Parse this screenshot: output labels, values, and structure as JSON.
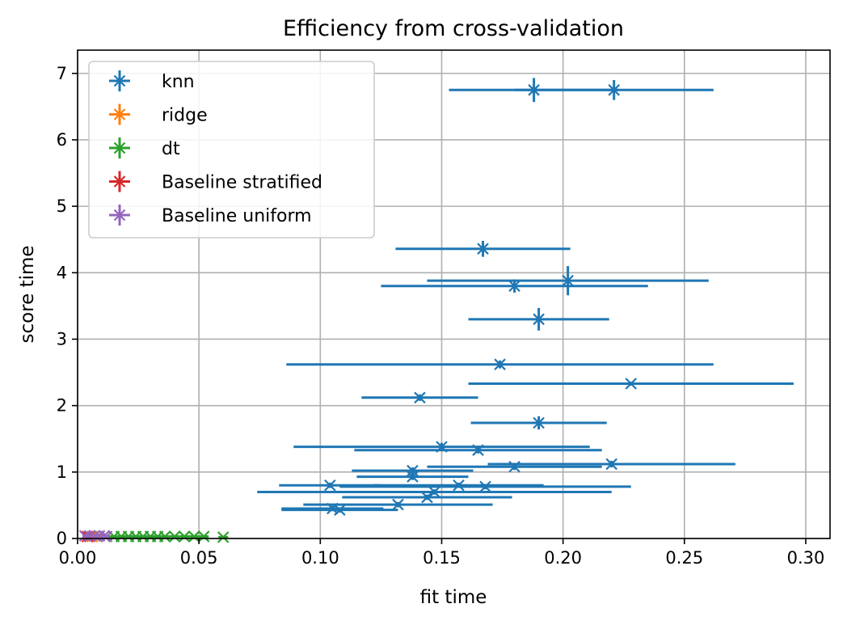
{
  "chart_data": {
    "type": "scatter",
    "title": "Efficiency from cross-validation",
    "xlabel": "fit time",
    "ylabel": "score time",
    "xlim": [
      0.0,
      0.31
    ],
    "ylim": [
      0,
      7.35
    ],
    "xticks": [
      0.0,
      0.05,
      0.1,
      0.15,
      0.2,
      0.25,
      0.3
    ],
    "xtick_labels": [
      "0.00",
      "0.05",
      "0.10",
      "0.15",
      "0.20",
      "0.25",
      "0.30"
    ],
    "yticks": [
      0,
      1,
      2,
      3,
      4,
      5,
      6,
      7
    ],
    "ytick_labels": [
      "0",
      "1",
      "2",
      "3",
      "4",
      "5",
      "6",
      "7"
    ],
    "grid": true,
    "legend_position": "top-left",
    "marker": "x",
    "series": [
      {
        "name": "knn",
        "color": "#1f77b4",
        "points": [
          {
            "x": 0.188,
            "y": 6.75,
            "xerr": 0.035,
            "yerr": 0.18
          },
          {
            "x": 0.221,
            "y": 6.75,
            "xerr": 0.041,
            "yerr": 0.15
          },
          {
            "x": 0.167,
            "y": 4.36,
            "xerr": 0.036,
            "yerr": 0.12
          },
          {
            "x": 0.202,
            "y": 3.88,
            "xerr": 0.058,
            "yerr": 0.22
          },
          {
            "x": 0.18,
            "y": 3.8,
            "xerr": 0.055,
            "yerr": 0.1
          },
          {
            "x": 0.19,
            "y": 3.3,
            "xerr": 0.029,
            "yerr": 0.17
          },
          {
            "x": 0.174,
            "y": 2.62,
            "xerr": 0.088,
            "yerr": 0.06
          },
          {
            "x": 0.228,
            "y": 2.33,
            "xerr": 0.067,
            "yerr": 0.03
          },
          {
            "x": 0.141,
            "y": 2.12,
            "xerr": 0.024,
            "yerr": 0.05
          },
          {
            "x": 0.19,
            "y": 1.74,
            "xerr": 0.028,
            "yerr": 0.1
          },
          {
            "x": 0.15,
            "y": 1.38,
            "xerr": 0.061,
            "yerr": 0.06
          },
          {
            "x": 0.165,
            "y": 1.33,
            "xerr": 0.051,
            "yerr": 0.05
          },
          {
            "x": 0.22,
            "y": 1.12,
            "xerr": 0.051,
            "yerr": 0.05
          },
          {
            "x": 0.18,
            "y": 1.08,
            "xerr": 0.036,
            "yerr": 0.05
          },
          {
            "x": 0.138,
            "y": 1.02,
            "xerr": 0.025,
            "yerr": 0.05
          },
          {
            "x": 0.138,
            "y": 0.93,
            "xerr": 0.023,
            "yerr": 0.05
          },
          {
            "x": 0.104,
            "y": 0.8,
            "xerr": 0.021,
            "yerr": 0.04
          },
          {
            "x": 0.157,
            "y": 0.8,
            "xerr": 0.035,
            "yerr": 0.04
          },
          {
            "x": 0.168,
            "y": 0.78,
            "xerr": 0.06,
            "yerr": 0.04
          },
          {
            "x": 0.147,
            "y": 0.7,
            "xerr": 0.073,
            "yerr": 0.04
          },
          {
            "x": 0.144,
            "y": 0.62,
            "xerr": 0.035,
            "yerr": 0.04
          },
          {
            "x": 0.132,
            "y": 0.51,
            "xerr": 0.039,
            "yerr": 0.04
          },
          {
            "x": 0.105,
            "y": 0.45,
            "xerr": 0.021,
            "yerr": 0.04
          },
          {
            "x": 0.108,
            "y": 0.43,
            "xerr": 0.024,
            "yerr": 0.04
          }
        ]
      },
      {
        "name": "ridge",
        "color": "#ff7f0e",
        "points": [
          {
            "x": 0.006,
            "y": 0.03,
            "xerr": 0.002,
            "yerr": 0.01
          },
          {
            "x": 0.008,
            "y": 0.03,
            "xerr": 0.002,
            "yerr": 0.01
          }
        ]
      },
      {
        "name": "dt",
        "color": "#2ca02c",
        "points": [
          {
            "x": 0.015,
            "y": 0.03,
            "xerr": 0.002,
            "yerr": 0.01
          },
          {
            "x": 0.018,
            "y": 0.03,
            "xerr": 0.002,
            "yerr": 0.01
          },
          {
            "x": 0.021,
            "y": 0.03,
            "xerr": 0.002,
            "yerr": 0.01
          },
          {
            "x": 0.024,
            "y": 0.03,
            "xerr": 0.002,
            "yerr": 0.01
          },
          {
            "x": 0.027,
            "y": 0.03,
            "xerr": 0.002,
            "yerr": 0.01
          },
          {
            "x": 0.03,
            "y": 0.03,
            "xerr": 0.002,
            "yerr": 0.01
          },
          {
            "x": 0.033,
            "y": 0.03,
            "xerr": 0.002,
            "yerr": 0.01
          },
          {
            "x": 0.036,
            "y": 0.03,
            "xerr": 0.002,
            "yerr": 0.01
          },
          {
            "x": 0.04,
            "y": 0.03,
            "xerr": 0.002,
            "yerr": 0.01
          },
          {
            "x": 0.044,
            "y": 0.03,
            "xerr": 0.002,
            "yerr": 0.01
          },
          {
            "x": 0.048,
            "y": 0.03,
            "xerr": 0.002,
            "yerr": 0.01
          },
          {
            "x": 0.052,
            "y": 0.03,
            "xerr": 0.002,
            "yerr": 0.01
          },
          {
            "x": 0.06,
            "y": 0.02,
            "xerr": 0.002,
            "yerr": 0.01
          }
        ]
      },
      {
        "name": "Baseline stratified",
        "color": "#d62728",
        "points": [
          {
            "x": 0.004,
            "y": 0.03,
            "xerr": 0.001,
            "yerr": 0.01
          },
          {
            "x": 0.005,
            "y": 0.03,
            "xerr": 0.001,
            "yerr": 0.01
          }
        ]
      },
      {
        "name": "Baseline uniform",
        "color": "#9467bd",
        "points": [
          {
            "x": 0.003,
            "y": 0.04,
            "xerr": 0.001,
            "yerr": 0.01
          },
          {
            "x": 0.005,
            "y": 0.04,
            "xerr": 0.001,
            "yerr": 0.01
          },
          {
            "x": 0.007,
            "y": 0.04,
            "xerr": 0.001,
            "yerr": 0.01
          },
          {
            "x": 0.009,
            "y": 0.04,
            "xerr": 0.001,
            "yerr": 0.01
          },
          {
            "x": 0.011,
            "y": 0.04,
            "xerr": 0.001,
            "yerr": 0.01
          },
          {
            "x": 0.012,
            "y": 0.03,
            "xerr": 0.001,
            "yerr": 0.01
          }
        ]
      }
    ]
  }
}
